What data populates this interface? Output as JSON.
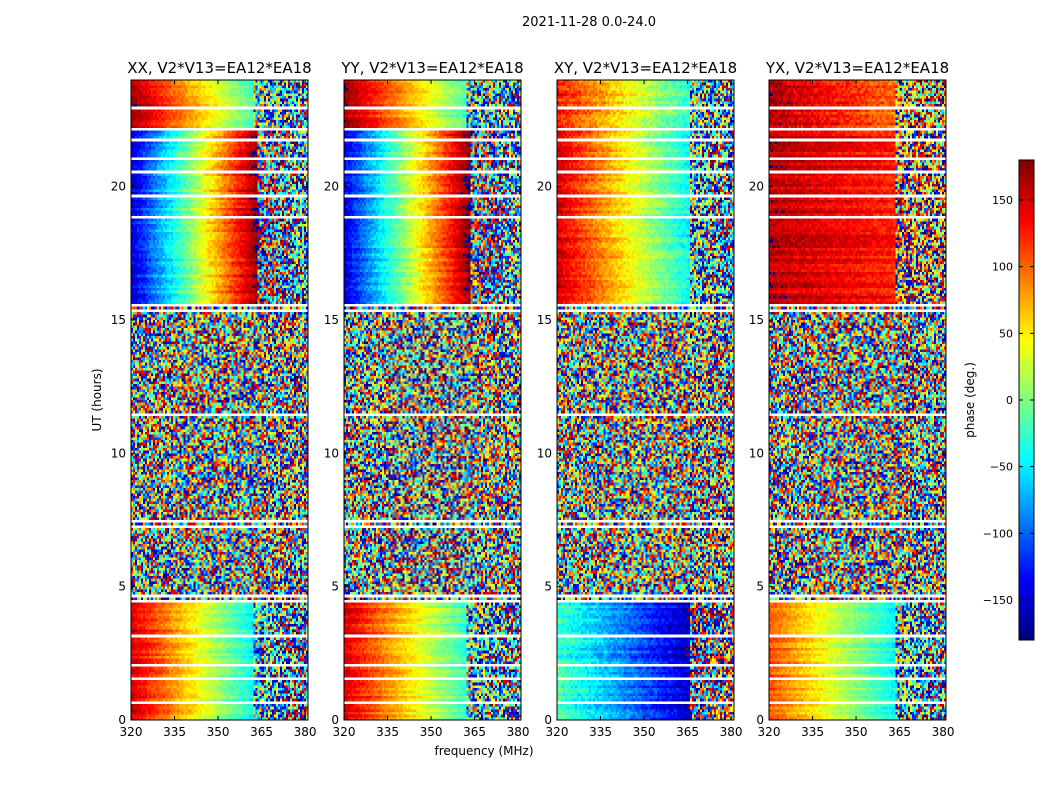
{
  "chart_data": {
    "type": "heatmap",
    "suptitle": "2021-11-28 0.0-24.0",
    "xlabel": "frequency (MHz)",
    "ylabel": "UT (hours)",
    "xlim": [
      320,
      381
    ],
    "ylim": [
      0,
      24
    ],
    "x_ticks": [
      "320",
      "335",
      "350",
      "365",
      "380"
    ],
    "x_tick_values": [
      320,
      335,
      350,
      365,
      380
    ],
    "y_ticks": [
      "0",
      "5",
      "10",
      "15",
      "20"
    ],
    "y_tick_values": [
      0,
      5,
      10,
      15,
      20
    ],
    "colorbar": {
      "label": "phase (deg.)",
      "range": [
        -180,
        180
      ],
      "colormap": "jet",
      "ticks": [
        "−150",
        "−100",
        "−50",
        "0",
        "50",
        "100",
        "150"
      ],
      "tick_values": [
        -150,
        -100,
        -50,
        0,
        50,
        100,
        150
      ]
    },
    "panels": [
      {
        "title": "XX, V2*V13=EA12*EA18",
        "segments": [
          {
            "t0": 0.0,
            "t1": 4.5,
            "phase_at_320": 150,
            "slope_deg_per_mhz": -4.6,
            "noise_deg": 12,
            "noisy_above_mhz": 362
          },
          {
            "t0": 4.5,
            "t1": 7.3,
            "phase_at_320": 0,
            "slope_deg_per_mhz": 0,
            "noise_deg": 180,
            "noisy_above_mhz": 320
          },
          {
            "t0": 7.3,
            "t1": 15.5,
            "phase_at_320": 0,
            "slope_deg_per_mhz": 0,
            "noise_deg": 180,
            "noisy_above_mhz": 320
          },
          {
            "t0": 15.5,
            "t1": 22.1,
            "phase_at_320": -150,
            "slope_deg_per_mhz": 7.5,
            "noise_deg": 15,
            "noisy_above_mhz": 364
          },
          {
            "t0": 22.1,
            "t1": 24.0,
            "phase_at_320": 170,
            "slope_deg_per_mhz": -4.5,
            "noise_deg": 12,
            "noisy_above_mhz": 362
          }
        ]
      },
      {
        "title": "YY, V2*V13=EA12*EA18",
        "segments": [
          {
            "t0": 0.0,
            "t1": 4.5,
            "phase_at_320": 150,
            "slope_deg_per_mhz": -4.2,
            "noise_deg": 12,
            "noisy_above_mhz": 362
          },
          {
            "t0": 4.5,
            "t1": 7.3,
            "phase_at_320": 0,
            "slope_deg_per_mhz": 0,
            "noise_deg": 180,
            "noisy_above_mhz": 320
          },
          {
            "t0": 7.3,
            "t1": 15.5,
            "phase_at_320": 0,
            "slope_deg_per_mhz": 0,
            "noise_deg": 180,
            "noisy_above_mhz": 320
          },
          {
            "t0": 15.5,
            "t1": 22.1,
            "phase_at_320": -150,
            "slope_deg_per_mhz": 7.5,
            "noise_deg": 15,
            "noisy_above_mhz": 364
          },
          {
            "t0": 22.1,
            "t1": 24.0,
            "phase_at_320": 170,
            "slope_deg_per_mhz": -4.5,
            "noise_deg": 12,
            "noisy_above_mhz": 362
          }
        ]
      },
      {
        "title": "XY, V2*V13=EA12*EA18",
        "segments": [
          {
            "t0": 0.0,
            "t1": 4.5,
            "phase_at_320": -20,
            "slope_deg_per_mhz": -3.0,
            "noise_deg": 18,
            "noisy_above_mhz": 366
          },
          {
            "t0": 4.5,
            "t1": 7.3,
            "phase_at_320": 0,
            "slope_deg_per_mhz": 0,
            "noise_deg": 180,
            "noisy_above_mhz": 320
          },
          {
            "t0": 7.3,
            "t1": 15.5,
            "phase_at_320": 0,
            "slope_deg_per_mhz": 0,
            "noise_deg": 180,
            "noisy_above_mhz": 320
          },
          {
            "t0": 15.5,
            "t1": 22.1,
            "phase_at_320": 150,
            "slope_deg_per_mhz": -4.3,
            "noise_deg": 15,
            "noisy_above_mhz": 366
          },
          {
            "t0": 22.1,
            "t1": 24.0,
            "phase_at_320": 130,
            "slope_deg_per_mhz": -3.5,
            "noise_deg": 20,
            "noisy_above_mhz": 366
          }
        ]
      },
      {
        "title": "YX, V2*V13=EA12*EA18",
        "segments": [
          {
            "t0": 0.0,
            "t1": 4.5,
            "phase_at_320": 110,
            "slope_deg_per_mhz": -3.5,
            "noise_deg": 12,
            "noisy_above_mhz": 364
          },
          {
            "t0": 4.5,
            "t1": 7.3,
            "phase_at_320": 0,
            "slope_deg_per_mhz": 0,
            "noise_deg": 180,
            "noisy_above_mhz": 320
          },
          {
            "t0": 7.3,
            "t1": 15.5,
            "phase_at_320": 0,
            "slope_deg_per_mhz": 0,
            "noise_deg": 180,
            "noisy_above_mhz": 320
          },
          {
            "t0": 15.5,
            "t1": 22.1,
            "phase_at_320": 160,
            "slope_deg_per_mhz": -0.8,
            "noise_deg": 15,
            "noisy_above_mhz": 364
          },
          {
            "t0": 22.1,
            "t1": 24.0,
            "phase_at_320": 160,
            "slope_deg_per_mhz": -1.5,
            "noise_deg": 20,
            "noisy_above_mhz": 364
          }
        ]
      }
    ],
    "blank_rows_hours": [
      0.7,
      1.5,
      2.0,
      3.1,
      4.45,
      4.6,
      7.2,
      7.45,
      11.4,
      15.3,
      15.55,
      18.8,
      19.6,
      20.5,
      21.0,
      21.7,
      22.2,
      22.9
    ]
  }
}
